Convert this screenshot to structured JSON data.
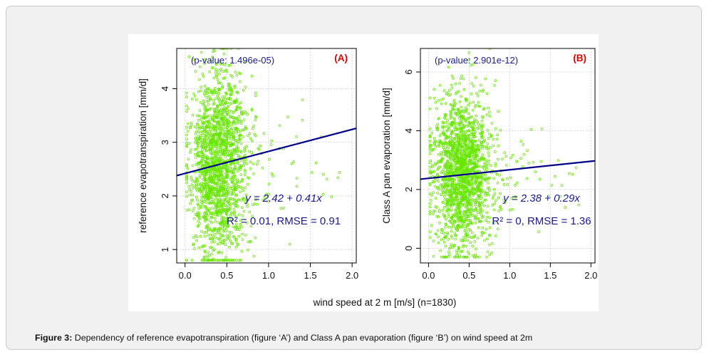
{
  "caption": {
    "label": "Figure 3:",
    "text": "Dependency of reference evapotranspiration (figure ‘A’) and Class A pan evaporation (figure ‘B’) on wind speed at 2m"
  },
  "shared_xlabel": "wind speed at 2 m [m/s] (n=1830)",
  "colors": {
    "points": "#66e600",
    "regression_line": "#00008b",
    "panel_tag": "#e00000",
    "annotation": "#1a1a8c"
  },
  "chart_data": [
    {
      "type": "scatter",
      "panel_tag": "(A)",
      "xlabel": "wind speed at 2 m [m/s] (n=1830)",
      "ylabel": "reference evapotranspiration [mm/d]",
      "xlim": [
        -0.1,
        2.05
      ],
      "ylim": [
        0.75,
        4.75
      ],
      "x_ticks": [
        "0.0",
        "0.5",
        "1.0",
        "1.5",
        "2.0"
      ],
      "y_ticks": [
        "1",
        "2",
        "3",
        "4"
      ],
      "pvalue_text": "(p-value:  1.496e-05)",
      "equation_text": "y = 2.42 + 0.41x",
      "stats_text": "R² = 0.01,  RMSE = 0.91",
      "regression": {
        "intercept": 2.42,
        "slope": 0.41
      },
      "n_points": 1830,
      "point_cloud": {
        "x_mean": 0.4,
        "x_spread": 0.17,
        "x_min": 0.02,
        "x_max": 2.05,
        "y_center": 2.6,
        "y_spread": 0.85,
        "y_min": 0.8,
        "y_max": 4.75
      }
    },
    {
      "type": "scatter",
      "panel_tag": "(B)",
      "xlabel": "wind speed at 2 m [m/s] (n=1830)",
      "ylabel": "Class A pan evaporation [mm/d]",
      "xlim": [
        -0.1,
        2.05
      ],
      "ylim": [
        -0.5,
        6.8
      ],
      "x_ticks": [
        "0.0",
        "0.5",
        "1.0",
        "1.5",
        "2.0"
      ],
      "y_ticks": [
        "0",
        "2",
        "4",
        "6"
      ],
      "pvalue_text": "(p-value: 2.901e-12)",
      "equation_text": "y = 2.38 + 0.29x",
      "stats_text": "R² = 0,  RMSE = 1.36",
      "regression": {
        "intercept": 2.38,
        "slope": 0.29
      },
      "n_points": 1830,
      "point_cloud": {
        "x_mean": 0.4,
        "x_spread": 0.17,
        "x_min": 0.02,
        "x_max": 2.05,
        "y_center": 2.6,
        "y_spread": 1.3,
        "y_min": -0.3,
        "y_max": 6.8
      }
    }
  ]
}
